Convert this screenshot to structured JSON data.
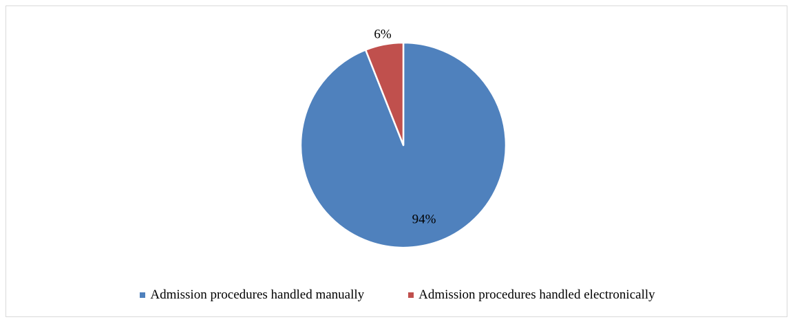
{
  "chart_data": {
    "type": "pie",
    "categories": [
      "Admission procedures handled manually",
      "Admission procedures handled electronically"
    ],
    "values": [
      94,
      6
    ],
    "data_labels": [
      "94%",
      "6%"
    ],
    "colors": [
      "#4f81bd",
      "#c0504d"
    ],
    "legend_position": "bottom",
    "title": ""
  }
}
